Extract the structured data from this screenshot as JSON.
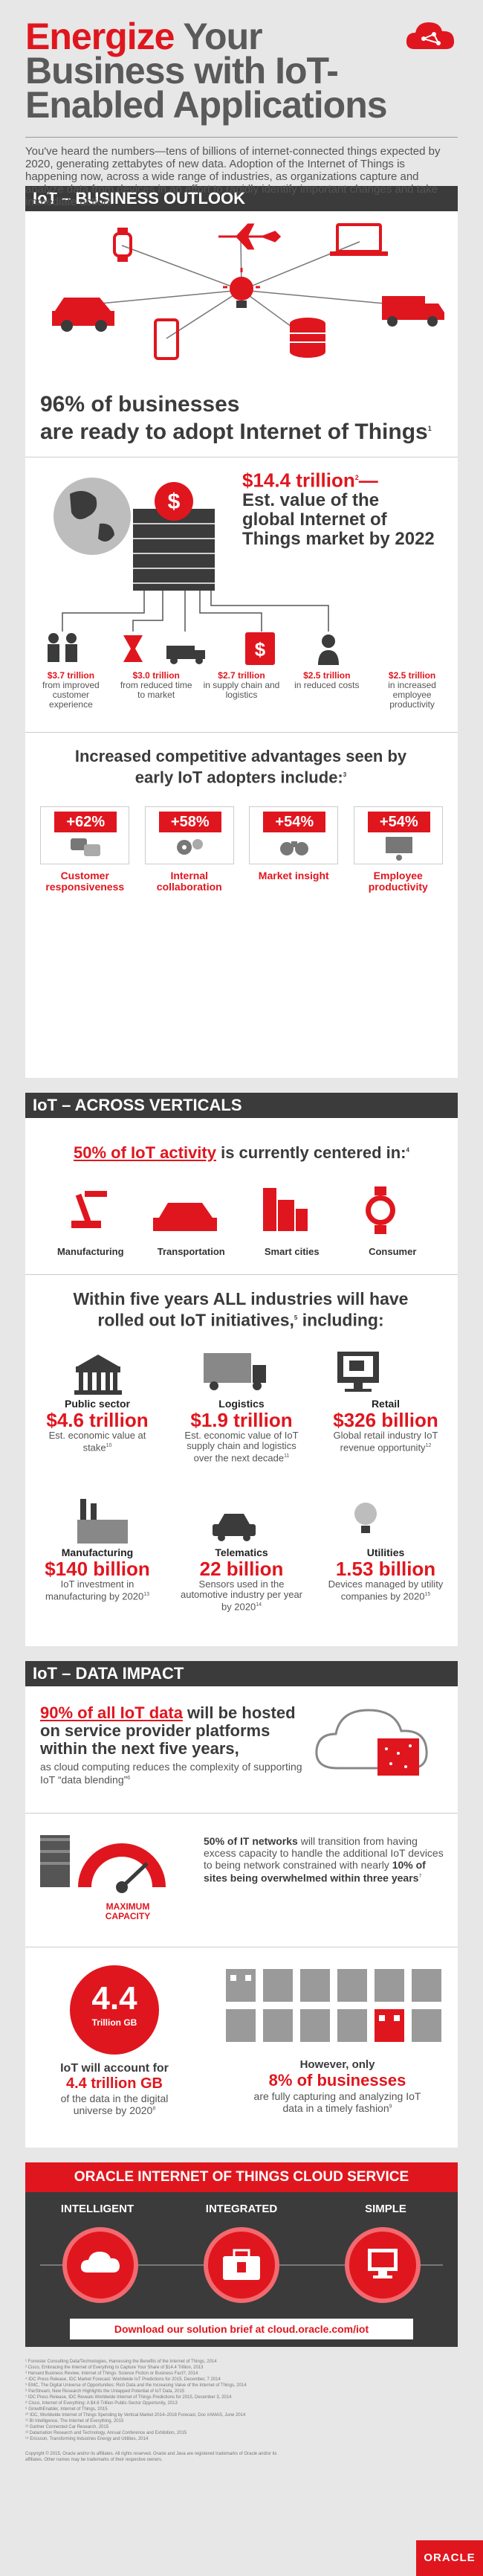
{
  "header": {
    "title_line1_red": "Energize",
    "title_line1_rest": " Your",
    "title_line2": "Business with IoT-",
    "title_line3": "Enabled Applications",
    "intro": "You've heard the numbers—tens of billions of internet-connected things expected by 2020, generating zettabytes of new data. Adoption of the Internet of Things is happening now, across a wide range of industries, as organizations capture and analyze data from devices in an effort to rapidly identify important changes and take immediate action."
  },
  "outlook": {
    "section_title": "IoT – BUSINESS OUTLOOK",
    "adopt_pct": "96% of businesses",
    "adopt_rest": "are ready to adopt Internet of Things",
    "adopt_sup": "1",
    "market_value": "$14.4 trillion",
    "market_sup": "2",
    "market_dash": "—",
    "market_desc": "Est. value of the global Internet of Things market by 2022",
    "value_items": [
      {
        "value": "$3.7 trillion",
        "desc": "from improved customer experience"
      },
      {
        "value": "$3.0 trillion",
        "desc": "from reduced time to market"
      },
      {
        "value": "$2.7 trillion",
        "desc": "in supply chain and logistics"
      },
      {
        "value": "$2.5 trillion",
        "desc": "in reduced costs"
      },
      {
        "value": "$2.5 trillion",
        "desc": "in increased employee productivity"
      }
    ],
    "adv_title": "Increased competitive advantages seen by early IoT adopters include:",
    "adv_sup": "3",
    "advantages": [
      {
        "pct": "+62%",
        "label": "Customer responsiveness"
      },
      {
        "pct": "+58%",
        "label": "Internal collaboration"
      },
      {
        "pct": "+54%",
        "label": "Market insight"
      },
      {
        "pct": "+54%",
        "label": "Employee productivity"
      }
    ]
  },
  "verticals": {
    "section_title": "IoT – ACROSS VERTICALS",
    "activity_pct": "50% of IoT activity",
    "activity_rest": " is currently centered in:",
    "activity_sup": "4",
    "activity_items": [
      "Manufacturing",
      "Transportation",
      "Smart cities",
      "Consumer"
    ],
    "rollout_title": "Within five years ALL industries will have rolled out IoT initiatives,",
    "rollout_sup": "5",
    "rollout_end": " including:",
    "industries": [
      {
        "name": "Public sector",
        "value": "$4.6 trillion",
        "desc": "Est. economic value at stake",
        "sup": "10"
      },
      {
        "name": "Logistics",
        "value": "$1.9 trillion",
        "desc": "Est. economic value of IoT supply chain and logistics over the next decade",
        "sup": "11"
      },
      {
        "name": "Retail",
        "value": "$326 billion",
        "desc": "Global retail industry IoT revenue opportunity",
        "sup": "12"
      },
      {
        "name": "Manufacturing",
        "value": "$140 billion",
        "desc": "IoT investment in manufacturing by 2020",
        "sup": "13"
      },
      {
        "name": "Telematics",
        "value": "22 billion",
        "desc": "Sensors used in the automotive industry per year by 2020",
        "sup": "14"
      },
      {
        "name": "Utilities",
        "value": "1.53 billion",
        "desc": "Devices managed by utility companies by 2020",
        "sup": "15"
      }
    ]
  },
  "data_impact": {
    "section_title": "IoT – DATA IMPACT",
    "cloud_pct": "90% of all IoT data",
    "cloud_rest": " will be hosted on service provider platforms within the next five years,",
    "cloud_desc": "as cloud computing reduces the complexity of supporting IoT “data blending”",
    "cloud_sup": "6",
    "capacity_label": "MAXIMUM CAPACITY",
    "network_bold": "50% of IT networks",
    "network_rest": " will transition from having excess capacity to handle the additional IoT devices to being network constrained with nearly ",
    "network_bold2": "10% of sites being overwhelmed within three years",
    "network_sup": "7",
    "tb_value": "4.4",
    "tb_unit": "Trillion GB",
    "universe_line1": "IoT will account for",
    "universe_value": "4.4 trillion GB",
    "universe_line3": "of the data in the digital universe by 2020",
    "universe_sup": "8",
    "capture_line1": "However, only",
    "capture_value": "8% of businesses",
    "capture_line3": "are fully capturing and analyzing IoT data in a timely fashion",
    "capture_sup": "9"
  },
  "service": {
    "title": "ORACLE INTERNET OF THINGS CLOUD SERVICE",
    "items": [
      "INTELLIGENT",
      "INTEGRATED",
      "SIMPLE"
    ],
    "cta": "Download our solution brief at cloud.oracle.com/iot"
  },
  "footnotes": [
    "¹ Forrester Consulting Data/Technologies, Harnessing the Benefits of the Internet of Things, 2014",
    "² Cisco, Embracing the Internet of Everything to Capture Your Share of $14.4 Trillion, 2013",
    "³ Harvard Business Review, Internet of Things: Science Fiction or Business Fact?, 2014",
    "⁴ IDC Press Release, IDC Market Forecast: Worldwide IoT Predictions for 2015, December, 7 2014",
    "⁵ EMC, The Digital Universe of Opportunities: Rich Data and the Increasing Value of the Internet of Things, 2014",
    "⁶ ParStream, New Research Highlights the Untapped Potential of IoT Data, 2015",
    "⁷ IDC Press Release, IDC Reveals Worldwide Internet of Things Predictions for 2015, December 3, 2014",
    "⁸ Cisco, Internet of Everything: A $4.6 Trillion Public-Sector Opportunity, 2013",
    "⁹ GrowthEnabler, Internet of Things, 2015",
    "¹⁰ IDC, Worldwide Internet of Things Spending by Vertical Market 2014–2018 Forecast, Doc #AMAS, June 2014",
    "¹¹ BI Intelligence, The Internet of Everything, 2015",
    "¹² Gartner Connected Car Research, 2015",
    "¹³ Datamation Research and Technology, Annual Conference and Exhibition, 2015",
    "¹⁴ Ericsson, Transforming Industries Energy and Utilities, 2014"
  ],
  "copyright": "Copyright © 2015, Oracle and/or its affiliates. All rights reserved. Oracle and Java are registered trademarks of Oracle and/or its affiliates. Other names may be trademarks of their respective owners.",
  "brand": "ORACLE",
  "colors": {
    "accent": "#e0161e",
    "dark": "#3b3b3b"
  }
}
